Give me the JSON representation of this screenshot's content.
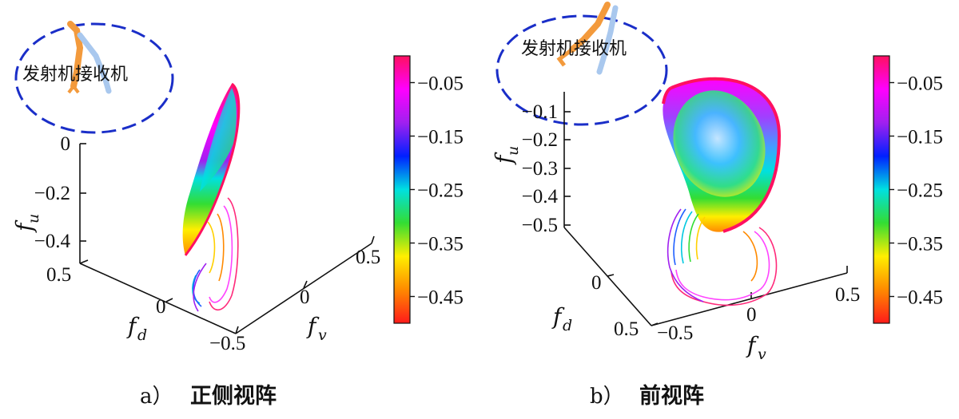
{
  "chart_data": [
    {
      "type": "surface3d",
      "panel_label": "a）",
      "view_title": "正侧视阵",
      "inset_label": "发射机接收机",
      "axes": {
        "u": {
          "name": "f",
          "sub": "u",
          "ticks": [
            "0",
            "−0.2",
            "−0.4"
          ],
          "range": [
            -0.5,
            0
          ]
        },
        "d": {
          "name": "f",
          "sub": "d",
          "ticks": [
            "0.5",
            "0"
          ],
          "range": [
            -0.5,
            0.5
          ]
        },
        "v": {
          "name": "f",
          "sub": "v",
          "ticks": [
            "−0.5",
            "0",
            "0.5"
          ],
          "range": [
            -0.5,
            0.5
          ]
        }
      },
      "colorbar": {
        "ticks": [
          "−0.05",
          "−0.15",
          "−0.25",
          "−0.35",
          "−0.45"
        ],
        "range": [
          -0.5,
          0
        ],
        "colormap": [
          "#ff1a1a",
          "#ff8a00",
          "#ffee00",
          "#33dd33",
          "#00e0e0",
          "#0020ff",
          "#a020f0",
          "#ff00ff",
          "#ff1060"
        ]
      }
    },
    {
      "type": "surface3d",
      "panel_label": "b）",
      "view_title": "前视阵",
      "inset_label": "发射机接收机",
      "axes": {
        "u": {
          "name": "f",
          "sub": "u",
          "ticks": [
            "−0.1",
            "−0.2",
            "−0.3",
            "−0.4",
            "−0.5"
          ],
          "range": [
            -0.5,
            0
          ]
        },
        "d": {
          "name": "f",
          "sub": "d",
          "ticks": [
            "0",
            "0.5"
          ],
          "range": [
            -0.5,
            0.5
          ]
        },
        "v": {
          "name": "f",
          "sub": "v",
          "ticks": [
            "−0.5",
            "0",
            "0.5"
          ],
          "range": [
            -0.5,
            0.5
          ]
        }
      },
      "colorbar": {
        "ticks": [
          "−0.05",
          "−0.15",
          "−0.25",
          "−0.35",
          "−0.45"
        ],
        "range": [
          -0.5,
          0
        ],
        "colormap": [
          "#ff1a1a",
          "#ff8a00",
          "#ffee00",
          "#33dd33",
          "#00e0e0",
          "#0020ff",
          "#a020f0",
          "#ff00ff",
          "#ff1060"
        ]
      }
    }
  ]
}
